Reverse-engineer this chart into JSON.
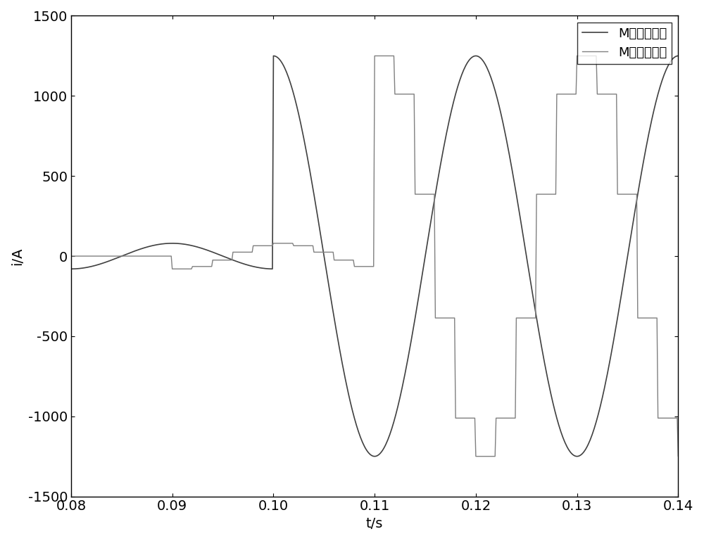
{
  "xlabel": "t/s",
  "ylabel": "i/A",
  "xlim": [
    0.08,
    0.14
  ],
  "ylim": [
    -1500,
    1500
  ],
  "xticks": [
    0.08,
    0.09,
    0.1,
    0.11,
    0.12,
    0.13,
    0.14
  ],
  "yticks": [
    -1500,
    -1000,
    -500,
    0,
    500,
    1000,
    1500
  ],
  "legend_labels": [
    "M端本地数据",
    "M端传输数据"
  ],
  "line1_color": "#404040",
  "line2_color": "#808080",
  "background_color": "#ffffff",
  "font_size": 14,
  "legend_font_size": 13
}
